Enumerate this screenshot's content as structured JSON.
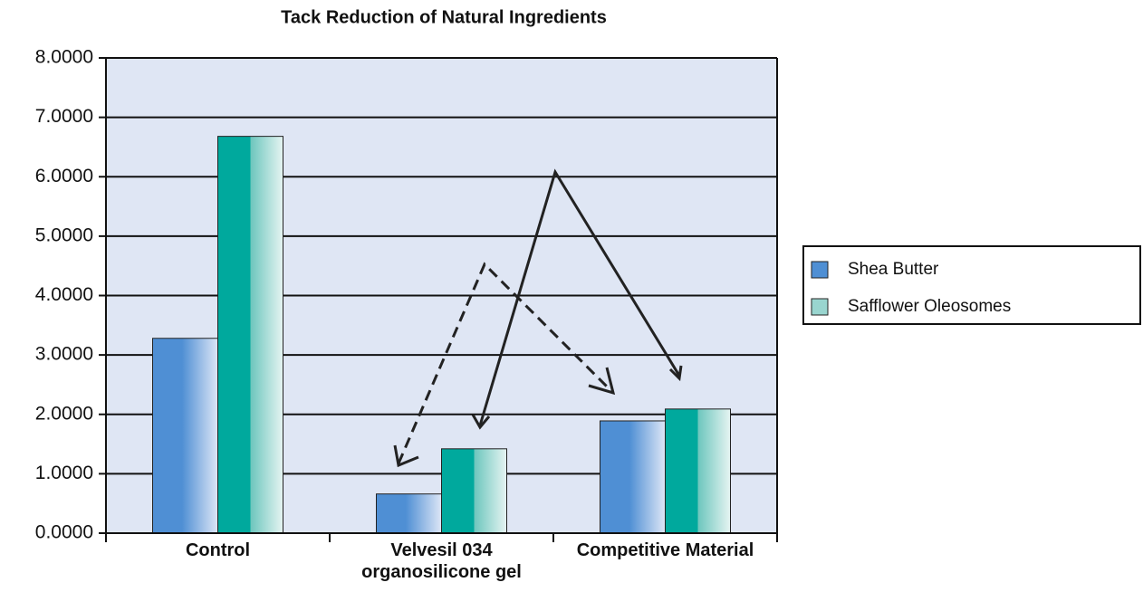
{
  "chart_data": {
    "type": "bar",
    "title": "Tack Reduction of Natural Ingredients",
    "categories": [
      "Control",
      "Velvesil 034 organosilicone gel",
      "Competitive Material"
    ],
    "series": [
      {
        "name": "Shea Butter",
        "color": "#4f8fd4",
        "values": [
          3.28,
          0.66,
          1.89
        ]
      },
      {
        "name": "Safflower Oleosomes",
        "color": "#00a99d",
        "values": [
          6.68,
          1.42,
          2.09
        ]
      }
    ],
    "ylim": [
      0,
      8
    ],
    "yticks": [
      {
        "value": 0,
        "label": "0.0000"
      },
      {
        "value": 1,
        "label": "1.0000"
      },
      {
        "value": 2,
        "label": "2.0000"
      },
      {
        "value": 3,
        "label": "3.0000"
      },
      {
        "value": 4,
        "label": "4.0000"
      },
      {
        "value": 5,
        "label": "5.0000"
      },
      {
        "value": 6,
        "label": "6.0000"
      },
      {
        "value": 7,
        "label": "7.0000"
      },
      {
        "value": 8,
        "label": "8.0000"
      }
    ],
    "grid": true,
    "legend": "right"
  }
}
